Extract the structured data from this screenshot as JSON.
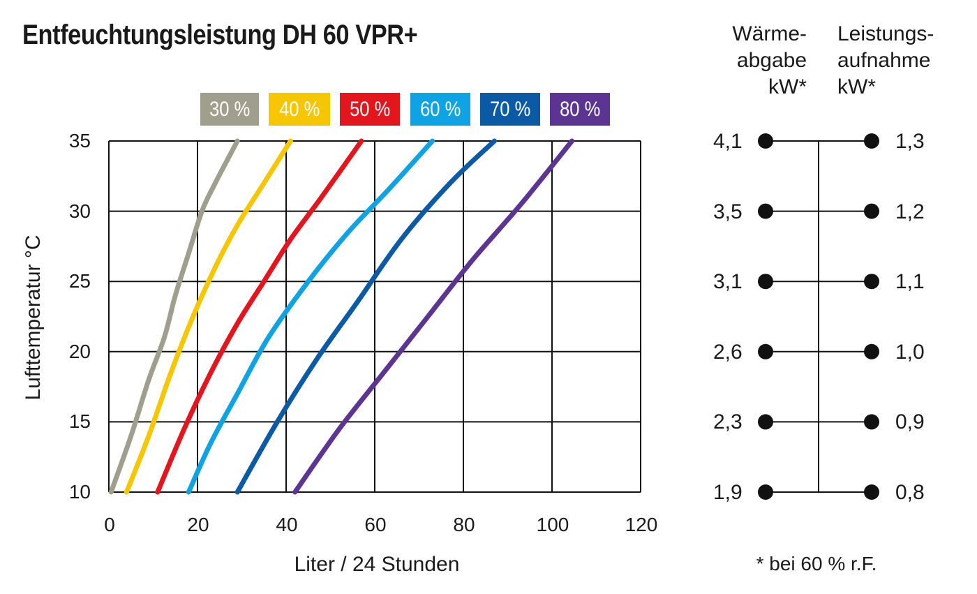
{
  "title": "Entfeuchtungsleistung DH 60 VPR+",
  "chart_data": {
    "type": "line",
    "title": "Entfeuchtungsleistung DH 60 VPR+",
    "xlabel": "Liter / 24 Stunden",
    "ylabel": "Lufttemperatur °C",
    "xlim": [
      0,
      120
    ],
    "ylim": [
      10,
      35
    ],
    "x_ticks": [
      "0",
      "20",
      "40",
      "60",
      "80",
      "100",
      "120"
    ],
    "y_ticks": [
      "10",
      "15",
      "20",
      "25",
      "30",
      "35"
    ],
    "grid": true,
    "legend_position": "top",
    "series": [
      {
        "name": "30 %",
        "color": "#a09e8d",
        "points": [
          [
            0.5,
            10
          ],
          [
            5,
            14
          ],
          [
            9,
            18
          ],
          [
            12.5,
            21
          ],
          [
            15,
            24
          ],
          [
            18,
            27
          ],
          [
            21,
            30
          ],
          [
            24,
            32
          ],
          [
            29,
            35
          ]
        ]
      },
      {
        "name": "40 %",
        "color": "#f6c700",
        "points": [
          [
            4,
            10
          ],
          [
            9,
            14
          ],
          [
            14,
            18.5
          ],
          [
            19,
            22.5
          ],
          [
            24,
            26
          ],
          [
            29,
            29
          ],
          [
            35,
            32
          ],
          [
            41,
            35
          ]
        ]
      },
      {
        "name": "50 %",
        "color": "#e3161e",
        "points": [
          [
            11,
            10
          ],
          [
            17,
            14.5
          ],
          [
            23,
            18.5
          ],
          [
            29,
            22
          ],
          [
            35,
            25
          ],
          [
            41,
            28
          ],
          [
            48,
            31
          ],
          [
            57,
            35
          ]
        ]
      },
      {
        "name": "60 %",
        "color": "#10a3e3",
        "points": [
          [
            18,
            10
          ],
          [
            23,
            13.5
          ],
          [
            29,
            17
          ],
          [
            36,
            21
          ],
          [
            45,
            25
          ],
          [
            54,
            28.5
          ],
          [
            63,
            31.5
          ],
          [
            73,
            35
          ]
        ]
      },
      {
        "name": "70 %",
        "color": "#0a5aa5",
        "points": [
          [
            29,
            10
          ],
          [
            38,
            15
          ],
          [
            47,
            19.5
          ],
          [
            56,
            23.5
          ],
          [
            66,
            28
          ],
          [
            77,
            32
          ],
          [
            87,
            35
          ]
        ]
      },
      {
        "name": "80 %",
        "color": "#5c3592",
        "points": [
          [
            42,
            10
          ],
          [
            52,
            14.5
          ],
          [
            62,
            18.5
          ],
          [
            72,
            22.5
          ],
          [
            82,
            26.5
          ],
          [
            93,
            30.5
          ],
          [
            104.5,
            35
          ]
        ]
      }
    ]
  },
  "legend": [
    "30 %",
    "40 %",
    "50 %",
    "60 %",
    "70 %",
    "80 %"
  ],
  "side_table": {
    "heat_header": "Wärme-\nabgabe\nkW*",
    "power_header": "Leistungs-\naufnahme\nkW*",
    "rows": [
      {
        "temp": 35,
        "heat": "4,1",
        "power": "1,3"
      },
      {
        "temp": 30,
        "heat": "3,5",
        "power": "1,2"
      },
      {
        "temp": 25,
        "heat": "3,1",
        "power": "1,1"
      },
      {
        "temp": 20,
        "heat": "2,6",
        "power": "1,0"
      },
      {
        "temp": 15,
        "heat": "2,3",
        "power": "0,9"
      },
      {
        "temp": 10,
        "heat": "1,9",
        "power": "0,8"
      }
    ],
    "footnote": "* bei 60 % r.F."
  }
}
